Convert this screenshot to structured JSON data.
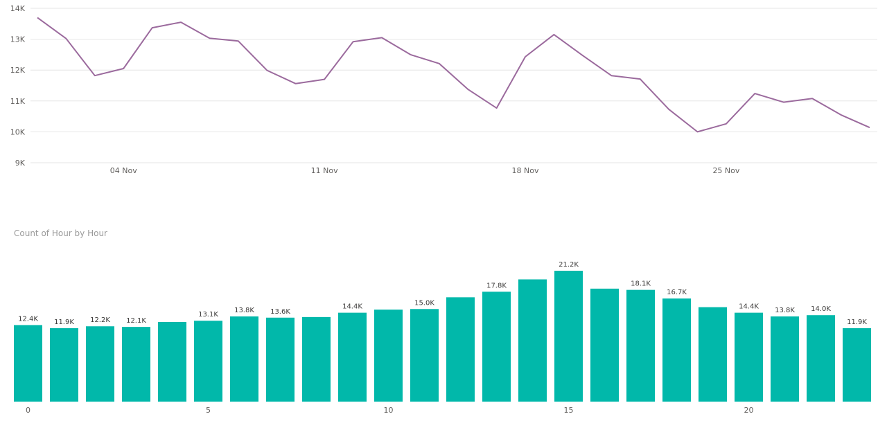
{
  "colors": {
    "line": "#9b6a9d",
    "bar": "#01b8aa",
    "grid": "#e6e6e6",
    "tick": "#605e5c",
    "title": "#9a9a9a"
  },
  "chart_data": [
    {
      "type": "line",
      "title": "",
      "xlabel": "",
      "ylabel": "",
      "x_tick_labels": [
        "04 Nov",
        "11 Nov",
        "18 Nov",
        "25 Nov"
      ],
      "x_tick_positions": [
        3,
        10,
        17,
        24
      ],
      "y_tick_labels": [
        "9K",
        "10K",
        "11K",
        "12K",
        "13K",
        "14K"
      ],
      "y_tick_values": [
        9000,
        10000,
        11000,
        12000,
        13000,
        14000
      ],
      "ylim": [
        9000,
        14000
      ],
      "xlim": [
        0,
        29
      ],
      "grid": true,
      "series": [
        {
          "x": [
            0,
            1,
            2,
            3,
            4,
            5,
            6,
            7,
            8,
            9,
            10,
            11,
            12,
            13,
            14,
            15,
            16,
            17,
            18,
            19,
            20,
            21,
            22,
            23,
            24,
            25,
            26,
            27,
            28,
            29
          ],
          "values": [
            13700,
            13020,
            11820,
            12050,
            13370,
            13550,
            13030,
            12940,
            11990,
            11560,
            11700,
            12920,
            13050,
            12500,
            12210,
            11380,
            10770,
            12430,
            13150,
            12470,
            11820,
            11710,
            10730,
            10000,
            10260,
            11240,
            10960,
            11080,
            10550,
            10140
          ]
        }
      ]
    },
    {
      "type": "bar",
      "title": "Count of Hour by Hour",
      "xlabel": "",
      "ylabel": "",
      "categories": [
        0,
        1,
        2,
        3,
        4,
        5,
        6,
        7,
        8,
        9,
        10,
        11,
        12,
        13,
        14,
        15,
        16,
        17,
        18,
        19,
        20,
        21,
        22,
        23
      ],
      "values": [
        12400,
        11900,
        12200,
        12100,
        12900,
        13100,
        13800,
        13600,
        13700,
        14400,
        14900,
        15000,
        16900,
        17800,
        19800,
        21200,
        18300,
        18100,
        16700,
        15300,
        14400,
        13800,
        14000,
        11900
      ],
      "data_labels": [
        "12.4K",
        "11.9K",
        "12.2K",
        "12.1K",
        "",
        "13.1K",
        "13.8K",
        "13.6K",
        "",
        "14.4K",
        "",
        "15.0K",
        "",
        "17.8K",
        "",
        "21.2K",
        "",
        "18.1K",
        "16.7K",
        "",
        "14.4K",
        "13.8K",
        "14.0K",
        "11.9K"
      ],
      "x_tick_labels": [
        "0",
        "5",
        "10",
        "15",
        "20"
      ],
      "x_tick_positions": [
        0,
        5,
        10,
        15,
        20
      ],
      "ylim": [
        0,
        21200
      ],
      "grid": false
    }
  ]
}
